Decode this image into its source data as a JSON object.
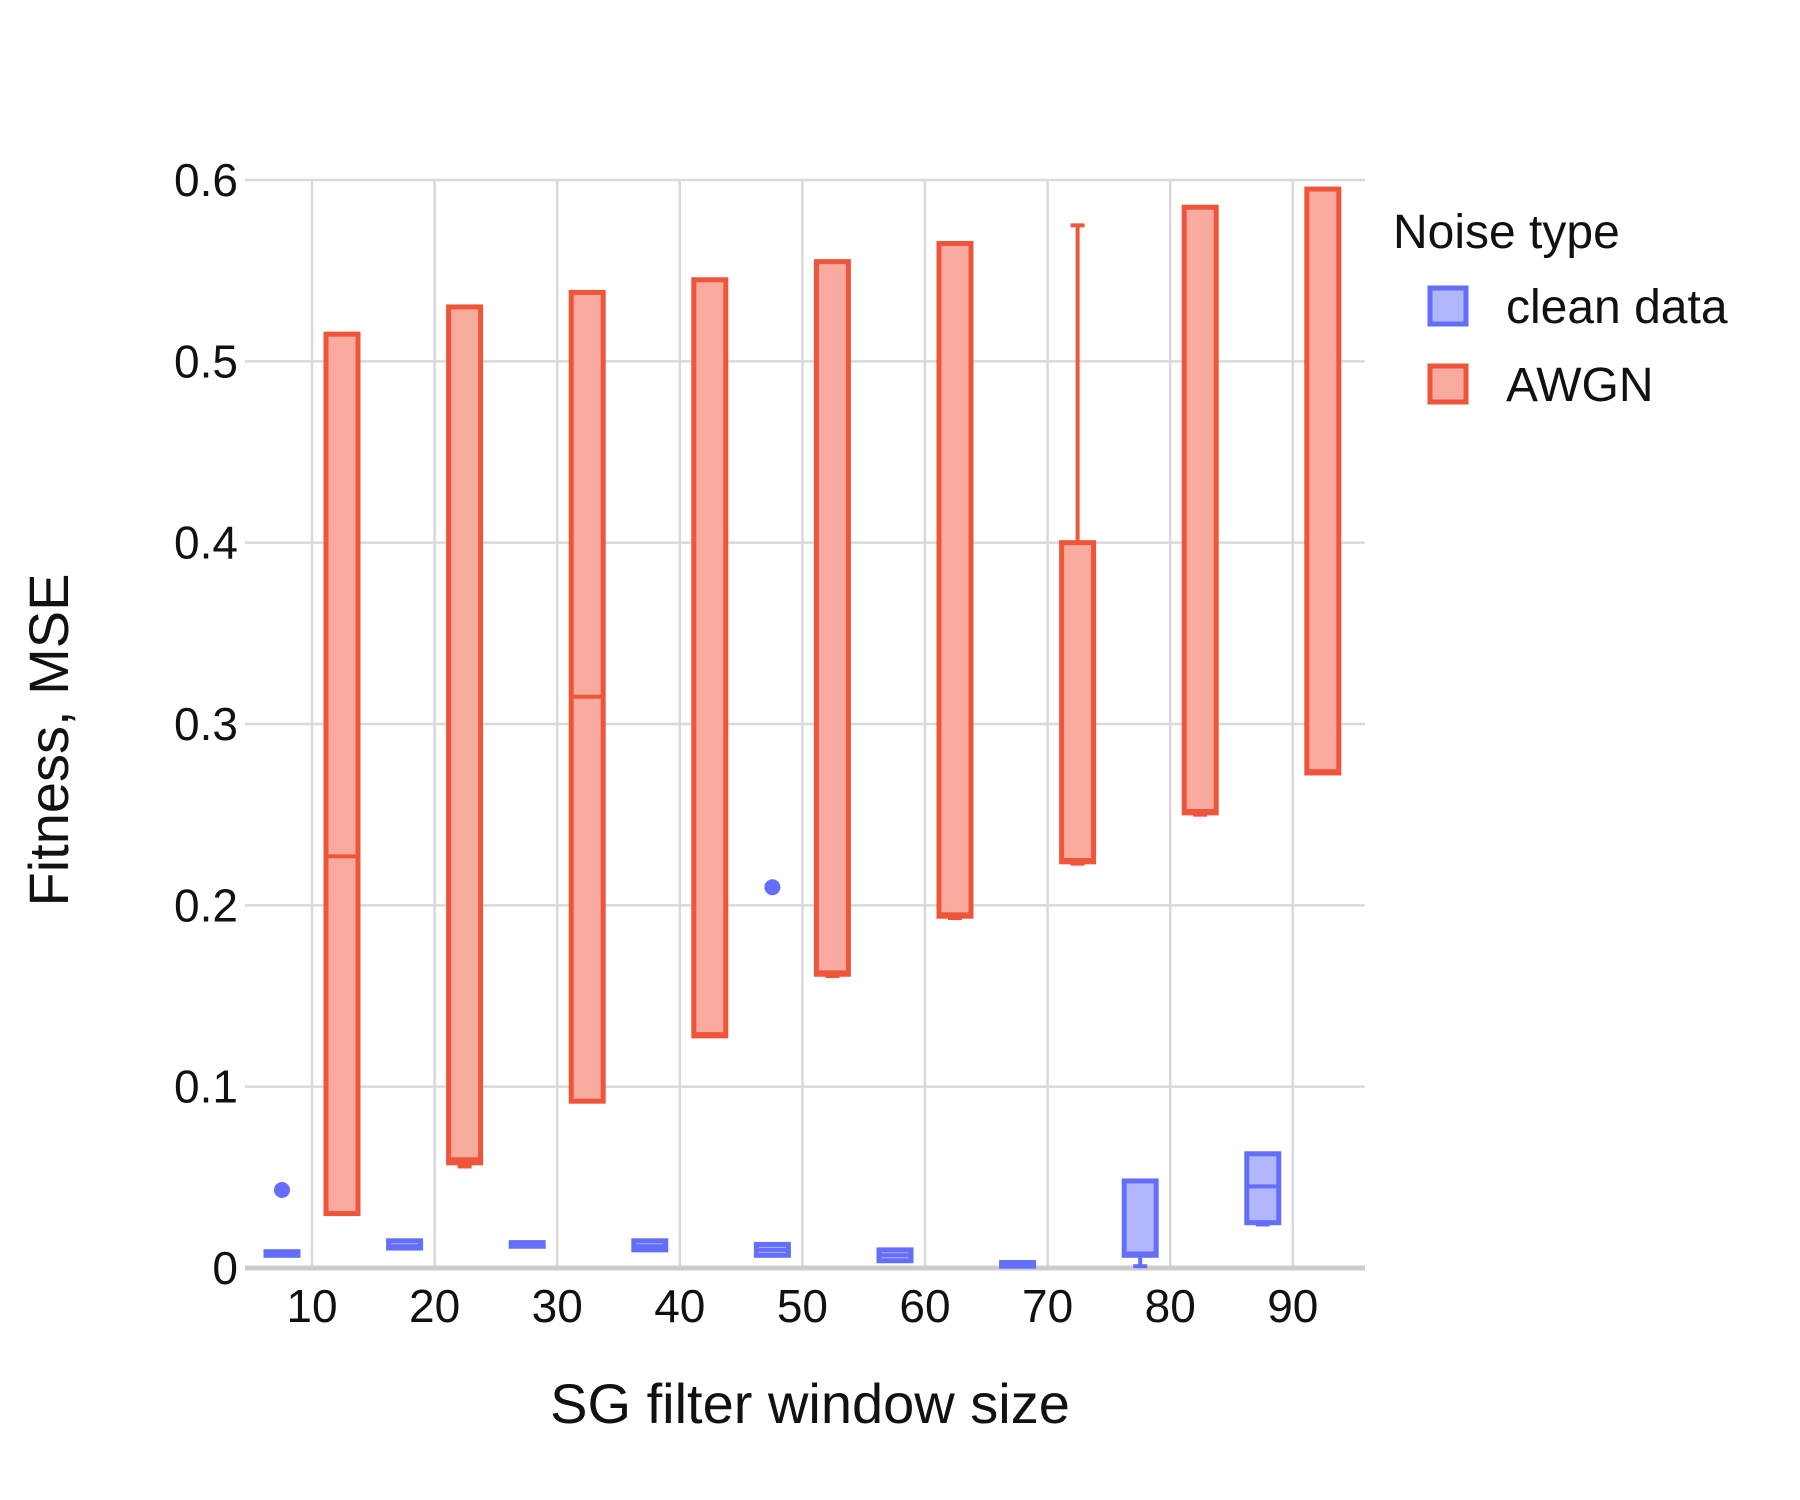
{
  "chart_data": {
    "type": "box",
    "title": "",
    "xlabel": "SG filter window size",
    "ylabel": "Fitness, MSE",
    "ylim": [
      0,
      0.6
    ],
    "yticks": [
      "0",
      "0.1",
      "0.2",
      "0.3",
      "0.4",
      "0.5",
      "0.6"
    ],
    "categories": [
      "10",
      "20",
      "30",
      "40",
      "50",
      "60",
      "70",
      "80",
      "90"
    ],
    "grid": true,
    "legend": {
      "title": "Noise type",
      "position": "right"
    },
    "series": [
      {
        "name": "clean data",
        "color": "#636efa",
        "fill": "#b1b6fd",
        "boxes": [
          {
            "x": "10",
            "lowerfence": 0.007,
            "q1": 0.007,
            "median": 0.008,
            "q3": 0.009,
            "upperfence": 0.009,
            "outliers": [
              0.043
            ]
          },
          {
            "x": "20",
            "lowerfence": 0.011,
            "q1": 0.011,
            "median": 0.012,
            "q3": 0.015,
            "upperfence": 0.015,
            "outliers": []
          },
          {
            "x": "30",
            "lowerfence": 0.012,
            "q1": 0.012,
            "median": 0.013,
            "q3": 0.014,
            "upperfence": 0.014,
            "outliers": []
          },
          {
            "x": "40",
            "lowerfence": 0.01,
            "q1": 0.01,
            "median": 0.012,
            "q3": 0.015,
            "upperfence": 0.015,
            "outliers": []
          },
          {
            "x": "50",
            "lowerfence": 0.007,
            "q1": 0.007,
            "median": 0.01,
            "q3": 0.013,
            "upperfence": 0.013,
            "outliers": [
              0.21
            ]
          },
          {
            "x": "60",
            "lowerfence": 0.004,
            "q1": 0.004,
            "median": 0.007,
            "q3": 0.01,
            "upperfence": 0.01,
            "outliers": []
          },
          {
            "x": "70",
            "lowerfence": 0.001,
            "q1": 0.001,
            "median": 0.002,
            "q3": 0.003,
            "upperfence": 0.003,
            "outliers": []
          },
          {
            "x": "80",
            "lowerfence": 0.001,
            "q1": 0.007,
            "median": 0.008,
            "q3": 0.048,
            "upperfence": 0.048,
            "outliers": []
          },
          {
            "x": "90",
            "lowerfence": 0.024,
            "q1": 0.025,
            "median": 0.045,
            "q3": 0.063,
            "upperfence": 0.063,
            "outliers": []
          }
        ]
      },
      {
        "name": "AWGN",
        "color": "#ef553b",
        "fill": "#f7aa9d",
        "boxes": [
          {
            "x": "10",
            "lowerfence": 0.03,
            "q1": 0.03,
            "median": 0.227,
            "q3": 0.515,
            "upperfence": 0.515,
            "outliers": []
          },
          {
            "x": "20",
            "lowerfence": 0.056,
            "q1": 0.058,
            "median": 0.06,
            "q3": 0.53,
            "upperfence": 0.53,
            "outliers": []
          },
          {
            "x": "30",
            "lowerfence": 0.092,
            "q1": 0.092,
            "median": 0.315,
            "q3": 0.538,
            "upperfence": 0.538,
            "outliers": []
          },
          {
            "x": "40",
            "lowerfence": 0.128,
            "q1": 0.128,
            "median": 0.129,
            "q3": 0.545,
            "upperfence": 0.545,
            "outliers": []
          },
          {
            "x": "50",
            "lowerfence": 0.161,
            "q1": 0.162,
            "median": 0.163,
            "q3": 0.555,
            "upperfence": 0.555,
            "outliers": []
          },
          {
            "x": "60",
            "lowerfence": 0.193,
            "q1": 0.194,
            "median": 0.195,
            "q3": 0.565,
            "upperfence": 0.565,
            "outliers": []
          },
          {
            "x": "70",
            "lowerfence": 0.223,
            "q1": 0.224,
            "median": 0.225,
            "q3": 0.4,
            "upperfence": 0.575,
            "outliers": []
          },
          {
            "x": "80",
            "lowerfence": 0.25,
            "q1": 0.251,
            "median": 0.252,
            "q3": 0.585,
            "upperfence": 0.585,
            "outliers": []
          },
          {
            "x": "90",
            "lowerfence": 0.273,
            "q1": 0.273,
            "median": 0.274,
            "q3": 0.595,
            "upperfence": 0.595,
            "outliers": []
          }
        ]
      }
    ]
  }
}
